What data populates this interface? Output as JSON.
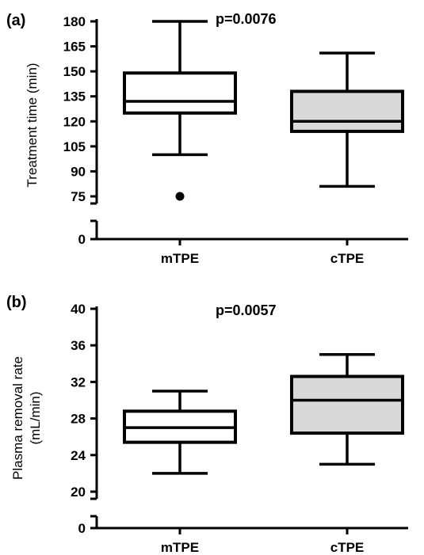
{
  "chart_data": [
    {
      "type": "box",
      "panel_label": "(a)",
      "annotation": "p=0.0076",
      "ylabel": "Treatment time (min)",
      "categories": [
        "mTPE",
        "cTPE"
      ],
      "y_ticks_upper": [
        "75",
        "90",
        "105",
        "120",
        "135",
        "150",
        "165",
        "180"
      ],
      "y_ticks_lower": [
        "0"
      ],
      "ylim_upper": [
        72,
        182
      ],
      "axis_break": true,
      "boxes": [
        {
          "category": "mTPE",
          "whisker_low": 100,
          "q1": 125,
          "median": 132,
          "q3": 149,
          "whisker_high": 180,
          "outliers": [
            75
          ],
          "fill": "#ffffff"
        },
        {
          "category": "cTPE",
          "whisker_low": 81,
          "q1": 114,
          "median": 120,
          "q3": 138,
          "whisker_high": 161,
          "outliers": [],
          "fill": "#d9d9d9"
        }
      ]
    },
    {
      "type": "box",
      "panel_label": "(b)",
      "annotation": "p=0.0057",
      "ylabel": "Plasma removal rate (mL/min)",
      "ylabel_lines": [
        "Plasma removal rate",
        "(mL/min)"
      ],
      "categories": [
        "mTPE",
        "cTPE"
      ],
      "y_ticks_upper": [
        "20",
        "24",
        "28",
        "32",
        "36",
        "40"
      ],
      "y_ticks_lower": [
        "0"
      ],
      "ylim_upper": [
        20,
        40
      ],
      "axis_break": true,
      "boxes": [
        {
          "category": "mTPE",
          "whisker_low": 22,
          "q1": 25.4,
          "median": 27,
          "q3": 28.8,
          "whisker_high": 31,
          "outliers": [],
          "fill": "#ffffff"
        },
        {
          "category": "cTPE",
          "whisker_low": 23,
          "q1": 26.4,
          "median": 30,
          "q3": 32.6,
          "whisker_high": 35,
          "outliers": [],
          "fill": "#d9d9d9"
        }
      ]
    }
  ]
}
